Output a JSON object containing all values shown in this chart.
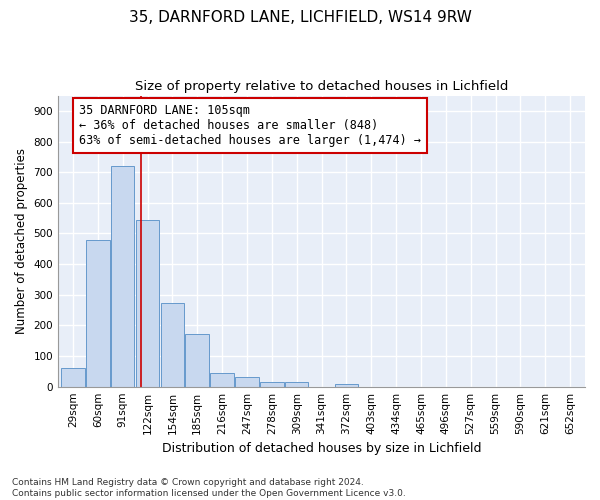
{
  "title1": "35, DARNFORD LANE, LICHFIELD, WS14 9RW",
  "title2": "Size of property relative to detached houses in Lichfield",
  "xlabel": "Distribution of detached houses by size in Lichfield",
  "ylabel": "Number of detached properties",
  "categories": [
    "29sqm",
    "60sqm",
    "91sqm",
    "122sqm",
    "154sqm",
    "185sqm",
    "216sqm",
    "247sqm",
    "278sqm",
    "309sqm",
    "341sqm",
    "372sqm",
    "403sqm",
    "434sqm",
    "465sqm",
    "496sqm",
    "527sqm",
    "559sqm",
    "590sqm",
    "621sqm",
    "652sqm"
  ],
  "values": [
    60,
    480,
    720,
    545,
    272,
    172,
    46,
    32,
    16,
    14,
    0,
    10,
    0,
    0,
    0,
    0,
    0,
    0,
    0,
    0,
    0
  ],
  "bar_color": "#c8d8ef",
  "bar_edge_color": "#6699cc",
  "vline_x": 2.75,
  "vline_color": "#cc0000",
  "annotation_text": "35 DARNFORD LANE: 105sqm\n← 36% of detached houses are smaller (848)\n63% of semi-detached houses are larger (1,474) →",
  "annotation_box_color": "#ffffff",
  "annotation_box_edge": "#cc0000",
  "ylim": [
    0,
    950
  ],
  "yticks": [
    0,
    100,
    200,
    300,
    400,
    500,
    600,
    700,
    800,
    900
  ],
  "footnote": "Contains HM Land Registry data © Crown copyright and database right 2024.\nContains public sector information licensed under the Open Government Licence v3.0.",
  "fig_bg_color": "#ffffff",
  "plot_bg_color": "#e8eef8",
  "grid_color": "#ffffff",
  "title1_fontsize": 11,
  "title2_fontsize": 9.5,
  "xlabel_fontsize": 9,
  "ylabel_fontsize": 8.5,
  "tick_fontsize": 7.5,
  "annot_fontsize": 8.5,
  "footnote_fontsize": 6.5
}
